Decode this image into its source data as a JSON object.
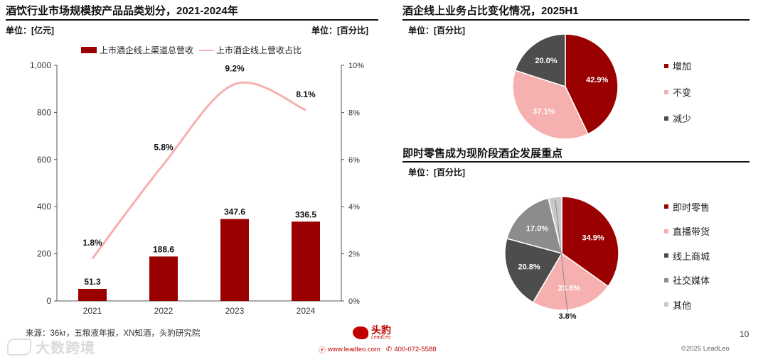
{
  "left_panel": {
    "title": "酒饮行业市场规模按产品品类划分，2021-2024年",
    "unit_left": "单位：[亿元]",
    "unit_right": "单位：[百分比]"
  },
  "right_top": {
    "title": "酒企线上业务占比变化情况，2025H1",
    "unit": "单位：[百分比]"
  },
  "right_bottom": {
    "title": "即时零售成为现阶段酒企发展重点",
    "unit": "单位：[百分比]"
  },
  "footer": {
    "source": "来源：36kr，五粮液年报，XN知酒，头豹研究院",
    "page_number": "10",
    "logo_text": "头豹",
    "logo_sub": "LeadLeo",
    "website": "www.leadleo.com",
    "phone": "400-072-5588",
    "copyright": "©2025 LeadLeo",
    "watermark_text": "大数跨境"
  },
  "colors": {
    "dark_red": "#9b0000",
    "pink": "#f7b0b0",
    "dark_gray": "#4d4d4d",
    "mid_gray": "#8c8c8c",
    "light_gray": "#c8c8c8"
  },
  "chart_data": [
    {
      "type": "bar",
      "title": "酒饮行业市场规模按产品品类划分，2021-2024年",
      "categories": [
        "2021",
        "2022",
        "2023",
        "2024"
      ],
      "series": [
        {
          "name": "上市酒企线上渠道总营收",
          "kind": "bar",
          "axis": "left",
          "values": [
            51.3,
            188.6,
            347.6,
            336.5
          ],
          "labels": [
            "51.3",
            "188.6",
            "347.6",
            "336.5"
          ]
        },
        {
          "name": "上市酒企线上营收占比",
          "kind": "line",
          "axis": "right",
          "values": [
            1.8,
            5.8,
            9.2,
            8.1
          ],
          "labels": [
            "1.8%",
            "5.8%",
            "9.2%",
            "8.1%"
          ]
        }
      ],
      "ylim_left": [
        0,
        1000
      ],
      "yticks_left": [
        "0",
        "200",
        "400",
        "600",
        "800",
        "1,000"
      ],
      "ylim_right": [
        0,
        10
      ],
      "yticks_right": [
        "0%",
        "2%",
        "4%",
        "6%",
        "8%",
        "10%"
      ],
      "legend_position": "top"
    },
    {
      "type": "pie",
      "title": "酒企线上业务占比变化情况，2025H1",
      "slices": [
        {
          "label": "增加",
          "value": 42.9,
          "display": "42.9%"
        },
        {
          "label": "不变",
          "value": 37.1,
          "display": "37.1%"
        },
        {
          "label": "减少",
          "value": 20.0,
          "display": "20.0%"
        }
      ]
    },
    {
      "type": "pie",
      "title": "即时零售成为现阶段酒企发展重点",
      "slices": [
        {
          "label": "即时零售",
          "value": 34.9,
          "display": "34.9%"
        },
        {
          "label": "直播带货",
          "value": 23.6,
          "display": "23.6%"
        },
        {
          "label": "线上商城",
          "value": 20.8,
          "display": "20.8%"
        },
        {
          "label": "社交媒体",
          "value": 17.0,
          "display": "17.0%"
        },
        {
          "label": "其他",
          "value": 3.8,
          "display": "3.8%"
        }
      ]
    }
  ]
}
